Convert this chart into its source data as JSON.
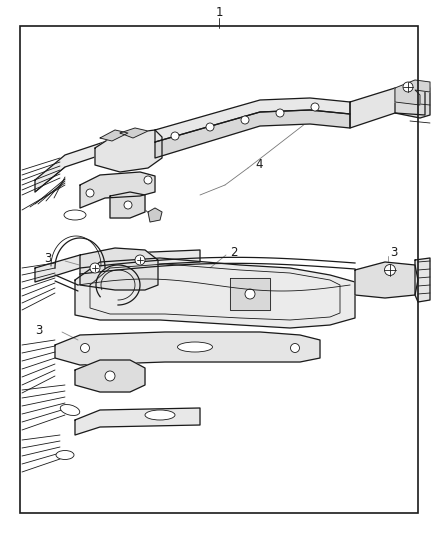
{
  "background_color": "#ffffff",
  "border_color": "#1a1a1a",
  "border_linewidth": 1.2,
  "fig_width": 4.38,
  "fig_height": 5.33,
  "label_1": "1",
  "label_2": "2",
  "label_3": "3",
  "label_4": "4",
  "label_font_size": 8.5,
  "line_color": "#1a1a1a",
  "fill_light": "#f2f2f2",
  "fill_mid": "#e0e0e0"
}
